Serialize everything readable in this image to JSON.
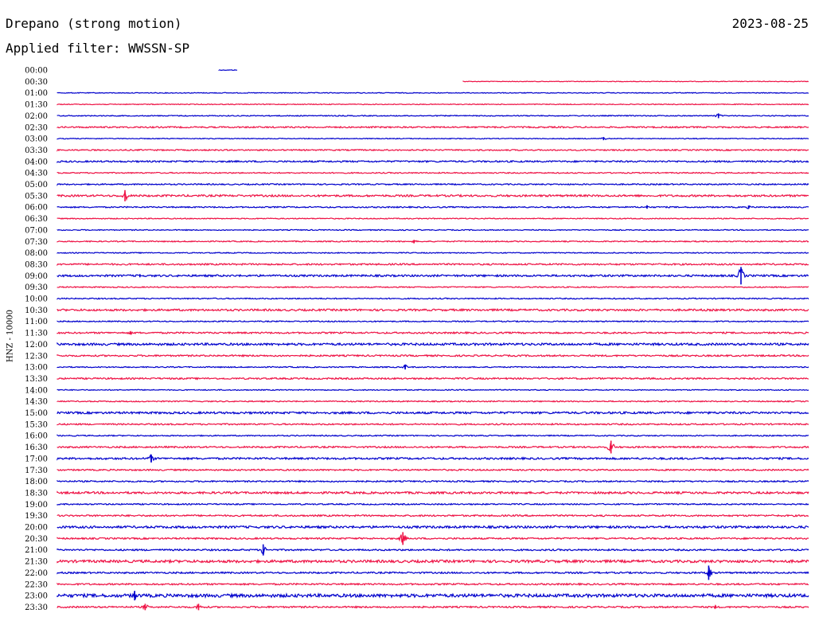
{
  "header": {
    "title": "Drepano (strong motion)",
    "date": "2023-08-25",
    "filter_label": "Applied filter: WWSSN-SP"
  },
  "chart_data": {
    "type": "line",
    "subtype": "helicorder",
    "ylabel": "HNZ - 10000",
    "row_labels": [
      "00:00",
      "00:30",
      "01:00",
      "01:30",
      "02:00",
      "02:30",
      "03:00",
      "03:30",
      "04:00",
      "04:30",
      "05:00",
      "05:30",
      "06:00",
      "06:30",
      "07:00",
      "07:30",
      "08:00",
      "08:30",
      "09:00",
      "09:30",
      "10:00",
      "10:30",
      "11:00",
      "11:30",
      "12:00",
      "12:30",
      "13:00",
      "13:30",
      "14:00",
      "14:30",
      "15:00",
      "15:30",
      "16:00",
      "16:30",
      "17:00",
      "17:30",
      "18:00",
      "18:30",
      "19:00",
      "19:30",
      "20:00",
      "20:30",
      "21:00",
      "21:30",
      "22:00",
      "22:30",
      "23:00",
      "23:30"
    ],
    "minutes_per_row": 30,
    "colors": [
      "#0000cc",
      "#ee1144"
    ],
    "coverage": [
      {
        "row": 0,
        "start": 0.215,
        "end": 0.24
      },
      {
        "row": 1,
        "start": 0.54,
        "end": 1.0
      }
    ],
    "noise_level": [
      0.4,
      0.4,
      0.5,
      0.5,
      0.6,
      0.9,
      0.5,
      0.8,
      1.0,
      0.7,
      0.8,
      1.2,
      0.8,
      0.6,
      0.6,
      0.7,
      0.6,
      1.0,
      1.2,
      0.7,
      0.7,
      1.2,
      0.7,
      1.0,
      1.4,
      1.0,
      0.7,
      1.0,
      0.6,
      0.7,
      1.3,
      0.9,
      0.7,
      1.0,
      1.2,
      0.9,
      0.9,
      1.3,
      0.8,
      1.0,
      1.4,
      1.0,
      1.0,
      1.6,
      1.0,
      1.0,
      2.0,
      1.0
    ],
    "events": [
      {
        "row": 4,
        "pos": 0.88,
        "amp": 3
      },
      {
        "row": 6,
        "pos": 0.727,
        "amp": 2
      },
      {
        "row": 11,
        "pos": 0.09,
        "amp": 7
      },
      {
        "row": 12,
        "pos": 0.785,
        "amp": 2
      },
      {
        "row": 12,
        "pos": 0.92,
        "amp": 2
      },
      {
        "row": 15,
        "pos": 0.475,
        "amp": 2
      },
      {
        "row": 18,
        "pos": 0.11,
        "amp": 2
      },
      {
        "row": 18,
        "pos": 0.91,
        "amp": 11
      },
      {
        "row": 23,
        "pos": 0.097,
        "amp": 2
      },
      {
        "row": 26,
        "pos": 0.463,
        "amp": 3
      },
      {
        "row": 33,
        "pos": 0.737,
        "amp": 8
      },
      {
        "row": 34,
        "pos": 0.125,
        "amp": 5
      },
      {
        "row": 41,
        "pos": 0.46,
        "amp": 8
      },
      {
        "row": 42,
        "pos": 0.274,
        "amp": 7
      },
      {
        "row": 44,
        "pos": 0.867,
        "amp": 9
      },
      {
        "row": 46,
        "pos": 0.103,
        "amp": 6
      },
      {
        "row": 47,
        "pos": 0.117,
        "amp": 4
      },
      {
        "row": 47,
        "pos": 0.188,
        "amp": 4
      },
      {
        "row": 47,
        "pos": 0.876,
        "amp": 2
      }
    ]
  }
}
